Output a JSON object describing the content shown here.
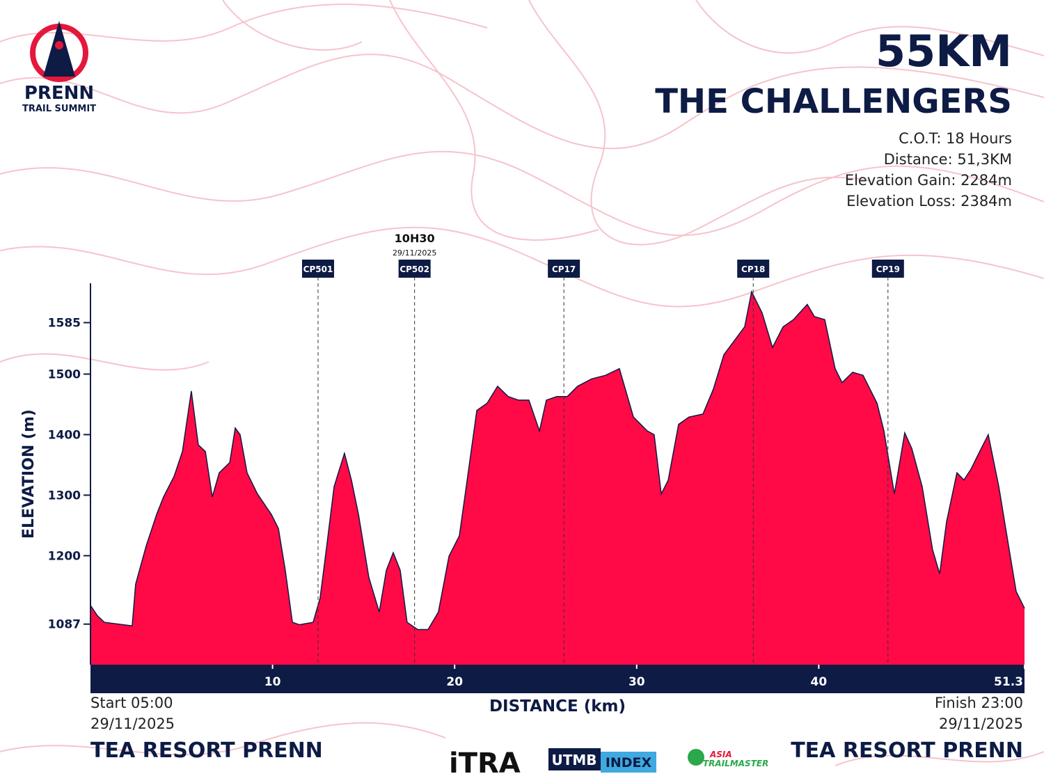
{
  "logo": {
    "name": "PRENN",
    "tagline": "TRAIL SUMMIT"
  },
  "info": {
    "title": "55KM",
    "subtitle": "THE CHALLENGERS",
    "lines": [
      "C.O.T: 18 Hours",
      "Distance: 51,3KM",
      "Elevation Gain: 2284m",
      "Elevation Loss: 2384m"
    ]
  },
  "start": {
    "time": "Start 05:00",
    "date": "29/11/2025",
    "place": "TEA RESORT PRENN"
  },
  "finish": {
    "time": "Finish 23:00",
    "date": "29/11/2025",
    "place": "TEA RESORT PRENN"
  },
  "partners": [
    "iTRA",
    "UTMB",
    "INDEX",
    "ASIA",
    "TRAILMASTER"
  ],
  "chart_data": {
    "type": "area",
    "xlabel": "DISTANCE (km)",
    "ylabel": "ELEVATION (m)",
    "color": "#ff0a47",
    "xlim": [
      0,
      51.3
    ],
    "ylim": [
      1020,
      1650
    ],
    "xticks": [
      10,
      20,
      30,
      40,
      51.3
    ],
    "yticks": [
      1087,
      1200,
      1300,
      1400,
      1500,
      1585
    ],
    "x": [
      0,
      0.38,
      0.76,
      2.29,
      2.48,
      3.06,
      3.63,
      4.01,
      4.59,
      5.05,
      5.54,
      5.92,
      6.31,
      6.69,
      7.07,
      7.65,
      7.95,
      8.22,
      8.6,
      9.17,
      9.94,
      10.32,
      10.7,
      11.09,
      11.47,
      12.23,
      12.61,
      13.0,
      13.38,
      13.95,
      14.33,
      14.72,
      15.29,
      15.86,
      16.25,
      16.63,
      17.01,
      17.39,
      17.97,
      18.54,
      19.11,
      19.69,
      20.26,
      20.64,
      21.22,
      21.79,
      22.36,
      22.94,
      23.51,
      24.08,
      24.66,
      25.04,
      25.61,
      26.19,
      26.76,
      27.52,
      28.29,
      29.05,
      29.82,
      30.58,
      30.96,
      31.35,
      31.73,
      32.3,
      32.87,
      33.64,
      34.21,
      34.79,
      35.36,
      35.93,
      36.31,
      36.89,
      37.46,
      38.04,
      38.61,
      39.37,
      39.76,
      40.33,
      40.9,
      41.28,
      41.86,
      42.43,
      43.2,
      43.58,
      44.15,
      44.72,
      45.11,
      45.68,
      46.25,
      46.64,
      47.02,
      47.59,
      47.97,
      48.36,
      48.74,
      49.31,
      49.89,
      50.46,
      50.84,
      51.3
    ],
    "values": [
      1118,
      1101,
      1090,
      1084,
      1153,
      1216,
      1268,
      1297,
      1331,
      1372,
      1472,
      1383,
      1372,
      1297,
      1337,
      1354,
      1411,
      1400,
      1337,
      1302,
      1268,
      1245,
      1176,
      1090,
      1086,
      1090,
      1130,
      1222,
      1314,
      1369,
      1325,
      1268,
      1164,
      1107,
      1176,
      1205,
      1176,
      1090,
      1078,
      1078,
      1107,
      1199,
      1233,
      1314,
      1440,
      1452,
      1480,
      1463,
      1457,
      1457,
      1406,
      1457,
      1463,
      1463,
      1480,
      1492,
      1498,
      1509,
      1429,
      1406,
      1400,
      1302,
      1325,
      1417,
      1429,
      1434,
      1475,
      1532,
      1555,
      1578,
      1636,
      1601,
      1544,
      1578,
      1590,
      1615,
      1595,
      1590,
      1509,
      1486,
      1503,
      1498,
      1452,
      1406,
      1302,
      1403,
      1377,
      1314,
      1210,
      1170,
      1256,
      1337,
      1325,
      1343,
      1366,
      1400,
      1314,
      1210,
      1141,
      1113
    ],
    "annotations": [
      {
        "label": "CP501",
        "x": 12.5
      },
      {
        "label": "CP502",
        "x": 17.8,
        "time": "10H30",
        "date": "29/11/2025"
      },
      {
        "label": "CP17",
        "x": 26.0
      },
      {
        "label": "CP18",
        "x": 36.4
      },
      {
        "label": "CP19",
        "x": 43.8
      }
    ]
  }
}
